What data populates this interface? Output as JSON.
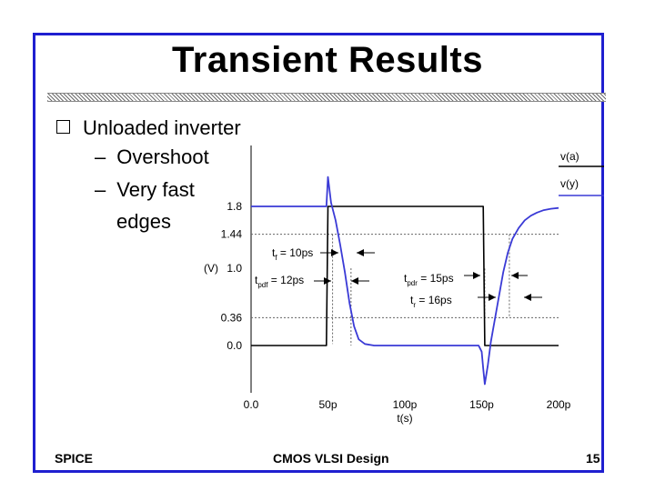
{
  "slide": {
    "title": "Transient Results",
    "bullet": "Unloaded inverter",
    "subbullets": [
      "Overshoot",
      "Very fast"
    ],
    "continuation": "edges",
    "dash": "–"
  },
  "footer": {
    "left": "SPICE",
    "center": "CMOS VLSI Design",
    "page": "15"
  },
  "colors": {
    "frame": "#1f1fd0",
    "input": "#000000",
    "output": "#3a3ad6",
    "guide": "#666666"
  },
  "chart_data": {
    "type": "line",
    "xlabel": "t(s)",
    "ylabel": "(V)",
    "x_tick_labels": [
      "0.0",
      "50p",
      "100p",
      "150p",
      "200p"
    ],
    "y_tick_labels": [
      "0.0",
      "0.36",
      "1.0",
      "1.44",
      "1.8"
    ],
    "x_ticks_ps": [
      0,
      50,
      100,
      150,
      200
    ],
    "y_ticks_v": [
      0.0,
      0.36,
      1.0,
      1.44,
      1.8
    ],
    "xlim_ps": [
      0,
      200
    ],
    "ylim_v": [
      -0.6,
      2.3
    ],
    "legend": [
      "v(a)",
      "v(y)"
    ],
    "legend_position": "top-right",
    "series": [
      {
        "name": "v(a)",
        "color": "#000000",
        "x_ps": [
          0,
          49,
          50,
          151,
          152,
          200
        ],
        "y_v": [
          0.0,
          0.0,
          1.8,
          1.8,
          0.0,
          0.0
        ]
      },
      {
        "name": "v(y)",
        "color": "#3a3ad6",
        "x_ps": [
          0,
          49,
          50,
          52,
          55,
          58,
          61,
          64,
          67,
          70,
          74,
          80,
          90,
          100,
          110,
          120,
          130,
          140,
          148,
          150,
          151,
          152,
          154,
          156,
          160,
          164,
          167,
          170,
          174,
          178,
          182,
          186,
          190,
          195,
          200
        ],
        "y_v": [
          1.8,
          1.8,
          2.18,
          1.85,
          1.62,
          1.3,
          0.95,
          0.55,
          0.25,
          0.08,
          0.02,
          0.0,
          0.0,
          0.0,
          0.0,
          0.0,
          0.0,
          0.0,
          0.0,
          -0.08,
          -0.3,
          -0.5,
          -0.25,
          0.05,
          0.5,
          0.95,
          1.2,
          1.38,
          1.52,
          1.62,
          1.68,
          1.72,
          1.75,
          1.77,
          1.78
        ]
      }
    ],
    "guides_y_v": [
      1.44,
      0.36
    ],
    "annotations": [
      {
        "label": "tf = 10ps",
        "main": "t",
        "subscript": "f",
        "rest": " = 10ps"
      },
      {
        "label": "tpdf = 12ps",
        "main": "t",
        "subscript": "pdf",
        "rest": " = 12ps"
      },
      {
        "label": "tpdr = 15ps",
        "main": "t",
        "subscript": "pdr",
        "rest": " = 15ps"
      },
      {
        "label": "tr = 16ps",
        "main": "t",
        "subscript": "r",
        "rest": " = 16ps"
      }
    ]
  }
}
